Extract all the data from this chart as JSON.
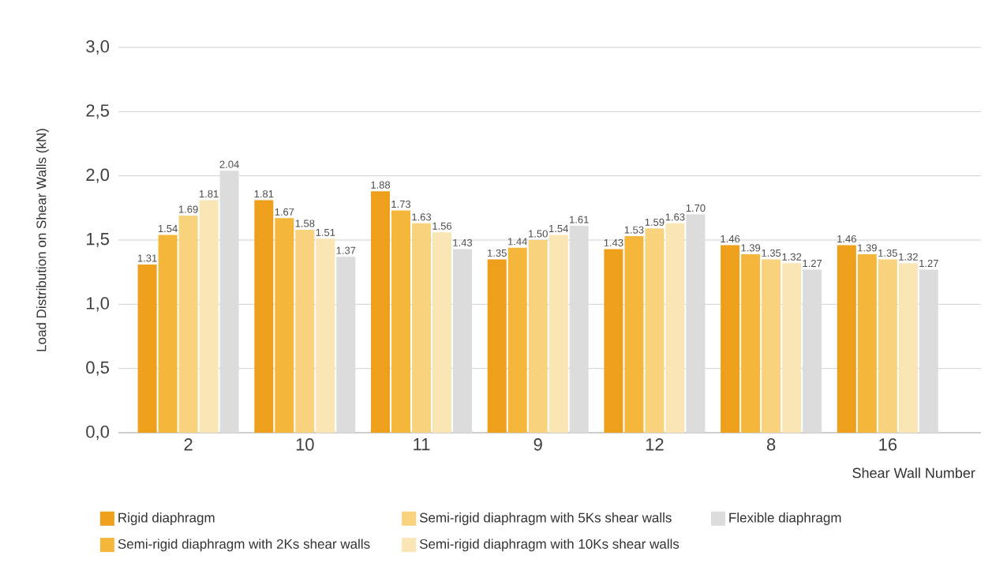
{
  "chart_data": {
    "type": "bar",
    "xlabel": "Shear Wall Number",
    "ylabel": "Load Distribution on Shear Walls (kN)",
    "categories": [
      "2",
      "10",
      "11",
      "9",
      "12",
      "8",
      "16"
    ],
    "series": [
      {
        "name": "Rigid diaphragm",
        "color": "#ee9f1c",
        "values": [
          1.31,
          1.81,
          1.88,
          1.35,
          1.43,
          1.46,
          1.46
        ],
        "value_labels": [
          "1.31",
          "1.81",
          "1.88",
          "1.35",
          "1.43",
          "1.46",
          "1.46"
        ]
      },
      {
        "name": "Semi-rigid diaphragm with 2Ks shear walls",
        "color": "#f5b73b",
        "values": [
          1.54,
          1.67,
          1.73,
          1.44,
          1.53,
          1.39,
          1.39
        ],
        "value_labels": [
          "1.54",
          "1.67",
          "1.73",
          "1.44",
          "1.53",
          "1.39",
          "1.39"
        ]
      },
      {
        "name": "Semi-rigid diaphragm with 5Ks shear walls",
        "color": "#f8d27c",
        "values": [
          1.69,
          1.58,
          1.63,
          1.5,
          1.59,
          1.35,
          1.35
        ],
        "value_labels": [
          "1.69",
          "1.58",
          "1.63",
          "1.50",
          "1.59",
          "1.35",
          "1.35"
        ]
      },
      {
        "name": "Semi-rigid diaphragm with 10Ks shear walls",
        "color": "#fae5b5",
        "values": [
          1.81,
          1.51,
          1.56,
          1.54,
          1.63,
          1.32,
          1.32
        ],
        "value_labels": [
          "1.81",
          "1.51",
          "1.56",
          "1.54",
          "1.63",
          "1.32",
          "1.32"
        ]
      },
      {
        "name": "Flexible diaphragm",
        "color": "#dcdcdc",
        "values": [
          2.04,
          1.37,
          1.43,
          1.61,
          1.7,
          1.27,
          1.27
        ],
        "value_labels": [
          "2.04",
          "1.37",
          "1.43",
          "1.61",
          "1.70",
          "1.27",
          "1.27"
        ]
      }
    ],
    "ylim": [
      0,
      3.0
    ],
    "yticks": [
      {
        "value": 0,
        "label": "0,0"
      },
      {
        "value": 0.5,
        "label": "0,5"
      },
      {
        "value": 1.0,
        "label": "1,0"
      },
      {
        "value": 1.5,
        "label": "1,5"
      },
      {
        "value": 2.0,
        "label": "2,0"
      },
      {
        "value": 2.5,
        "label": "2,5"
      },
      {
        "value": 3.0,
        "label": "3,0"
      }
    ],
    "grid": "y",
    "legend": "bottom"
  }
}
